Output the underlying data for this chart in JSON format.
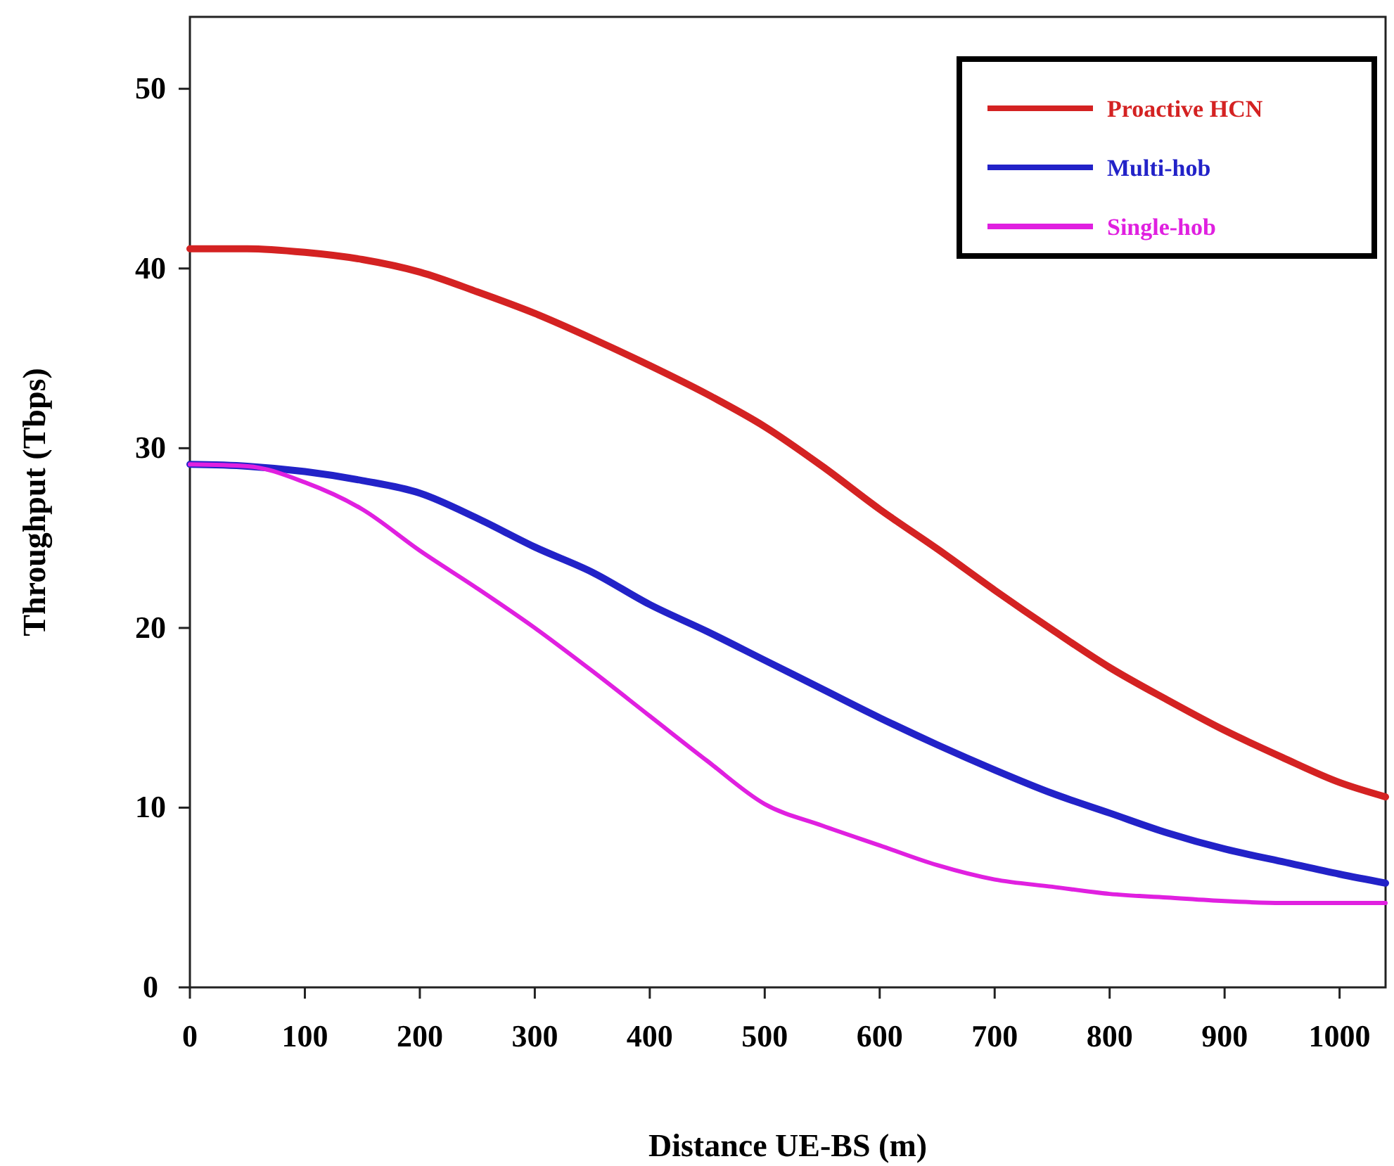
{
  "chart_data": {
    "type": "line",
    "xlabel": "Distance UE-BS (m)",
    "ylabel": "Throughput (Tbps)",
    "xlim": [
      0,
      1040
    ],
    "ylim": [
      0,
      54
    ],
    "xticks": [
      0,
      100,
      200,
      300,
      400,
      500,
      600,
      700,
      800,
      900,
      1000
    ],
    "yticks": [
      0,
      10,
      20,
      30,
      40,
      50
    ],
    "grid": false,
    "legend": "top right",
    "marker": "none",
    "line_style": "solid",
    "x": [
      0,
      50,
      100,
      150,
      200,
      250,
      300,
      350,
      400,
      450,
      500,
      550,
      600,
      650,
      700,
      750,
      800,
      850,
      900,
      950,
      1000,
      1040
    ],
    "series": [
      {
        "name": "Proactive HCN",
        "color": "#d42222",
        "values": [
          41.1,
          41.1,
          40.9,
          40.5,
          39.8,
          38.7,
          37.5,
          36.1,
          34.6,
          33.0,
          31.2,
          29.0,
          26.6,
          24.4,
          22.1,
          19.9,
          17.8,
          16.0,
          14.3,
          12.8,
          11.4,
          10.6
        ]
      },
      {
        "name": "Multi-hob",
        "color": "#2222c8",
        "values": [
          29.1,
          29.0,
          28.7,
          28.2,
          27.5,
          26.1,
          24.5,
          23.1,
          21.3,
          19.8,
          18.2,
          16.6,
          15.0,
          13.5,
          12.1,
          10.8,
          9.7,
          8.6,
          7.7,
          7.0,
          6.3,
          5.8
        ]
      },
      {
        "name": "Single-hob",
        "color": "#e020e0",
        "values": [
          29.1,
          29.0,
          28.1,
          26.6,
          24.3,
          22.2,
          20.0,
          17.6,
          15.1,
          12.6,
          10.2,
          9.0,
          7.9,
          6.8,
          6.0,
          5.6,
          5.2,
          5.0,
          4.8,
          4.7,
          4.7,
          4.7
        ]
      }
    ]
  }
}
